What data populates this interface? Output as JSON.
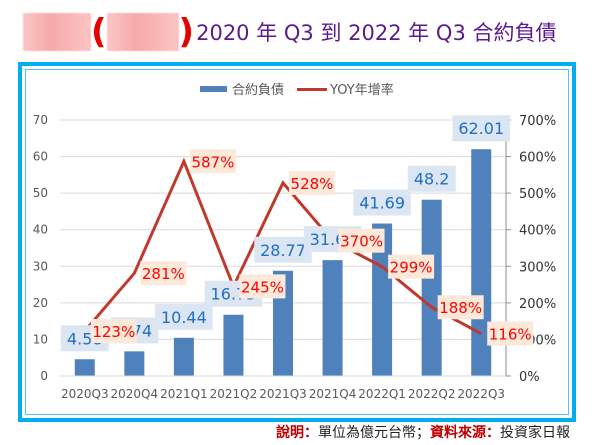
{
  "header": {
    "title": "2020 年 Q3 到 2022 年 Q3 合約負債",
    "open_paren": "(",
    "close_paren": ")",
    "redacted_company": true
  },
  "footer": {
    "note_label": "說明：",
    "note_value": "單位為億元台幣；",
    "source_label": "資料來源：",
    "source_value": "投資家日報"
  },
  "colors": {
    "bar": "#4f81bd",
    "line": "#c0392b",
    "bar_label_text": "#1f6fc5",
    "bar_label_bg": "#dce6f2",
    "line_label_text": "#ff0000",
    "line_label_bg": "#fde9d9",
    "frame": "#00aef0",
    "title": "#5c1a8c"
  },
  "chart_data": {
    "type": "bar+line",
    "title": "",
    "categories": [
      "2020Q3",
      "2020Q4",
      "2021Q1",
      "2021Q2",
      "2021Q3",
      "2021Q4",
      "2022Q1",
      "2022Q2",
      "2022Q3"
    ],
    "series": [
      {
        "name": "合約負債",
        "type": "bar",
        "axis": "left",
        "values": [
          4.58,
          6.74,
          10.44,
          16.75,
          28.77,
          31.68,
          41.69,
          48.2,
          62.01
        ],
        "labels": [
          "4.58",
          "6.74",
          "10.44",
          "16.75",
          "28.77",
          "31.68",
          "41.69",
          "48.2",
          "62.01"
        ]
      },
      {
        "name": "YOY年增率",
        "type": "line",
        "axis": "right",
        "values": [
          123,
          281,
          587,
          245,
          528,
          370,
          299,
          188,
          116
        ],
        "labels": [
          "123%",
          "281%",
          "587%",
          "245%",
          "528%",
          "370%",
          "299%",
          "188%",
          "116%"
        ]
      }
    ],
    "y_left": {
      "min": 0,
      "max": 70,
      "ticks": [
        "0",
        "10",
        "20",
        "30",
        "40",
        "50",
        "60",
        "70"
      ]
    },
    "y_right": {
      "min": 0,
      "max": 700,
      "ticks": [
        "0%",
        "100%",
        "200%",
        "300%",
        "400%",
        "500%",
        "600%",
        "700%"
      ]
    },
    "grid": true,
    "legend": {
      "position": "top-center",
      "entries": [
        "合約負債",
        "YOY年增率"
      ]
    }
  }
}
